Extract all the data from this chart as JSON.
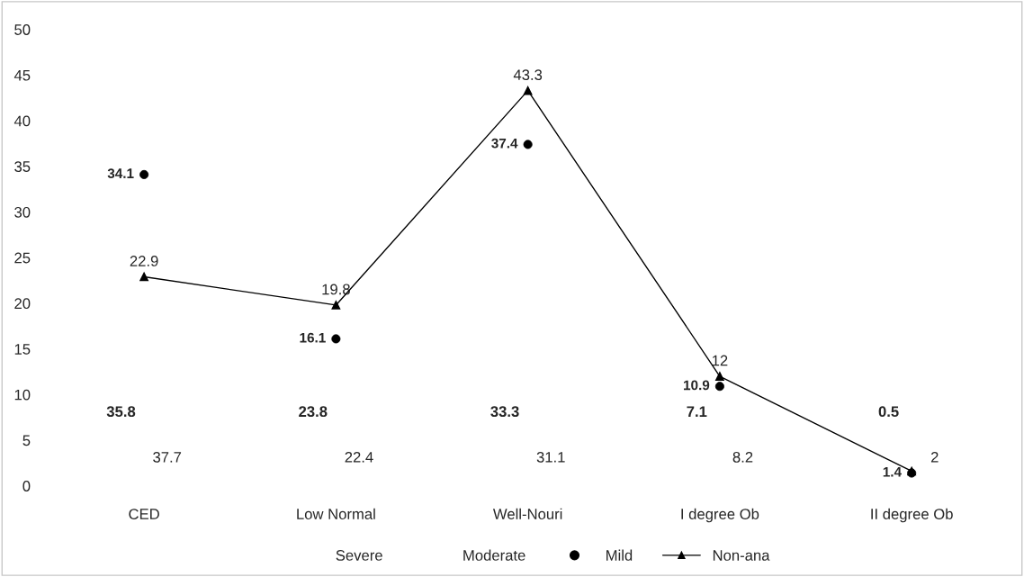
{
  "chart_data": {
    "type": "line",
    "categories": [
      "CED",
      "Low Normal",
      "Well-Nouri",
      "I degree Ob",
      "II degree Ob"
    ],
    "series": [
      {
        "name": "Severe",
        "type": "scatter",
        "marker": "none",
        "color": "#000000",
        "values": [
          null,
          null,
          null,
          null,
          null
        ]
      },
      {
        "name": "Moderate",
        "type": "scatter",
        "marker": "none",
        "color": "#000000",
        "values": [
          null,
          null,
          null,
          null,
          null
        ]
      },
      {
        "name": "Mild",
        "type": "scatter",
        "marker": "circle",
        "color": "#000000",
        "values": [
          34.1,
          16.1,
          37.4,
          10.9,
          1.4
        ],
        "value_labels": [
          "34.1",
          "16.1",
          "37.4",
          "10.9",
          "1.4"
        ]
      },
      {
        "name": "Non-ana",
        "marker": "triangle",
        "line_style": "solid",
        "color": "#000000",
        "values": [
          22.9,
          19.8,
          43.3,
          12,
          1.6
        ],
        "value_labels": [
          "22.9",
          "19.8",
          "43.3",
          "12",
          null
        ]
      }
    ],
    "annotations": [
      "35.8",
      "37.7",
      "23.8",
      "22.4",
      "33.3",
      "31.1",
      "7.1",
      "8.2",
      "0.5",
      "2"
    ],
    "ylim": [
      0,
      50
    ],
    "yticks": [
      0,
      5,
      10,
      15,
      20,
      25,
      30,
      35,
      40,
      45,
      50
    ],
    "grid": false,
    "legend": "bottom"
  }
}
